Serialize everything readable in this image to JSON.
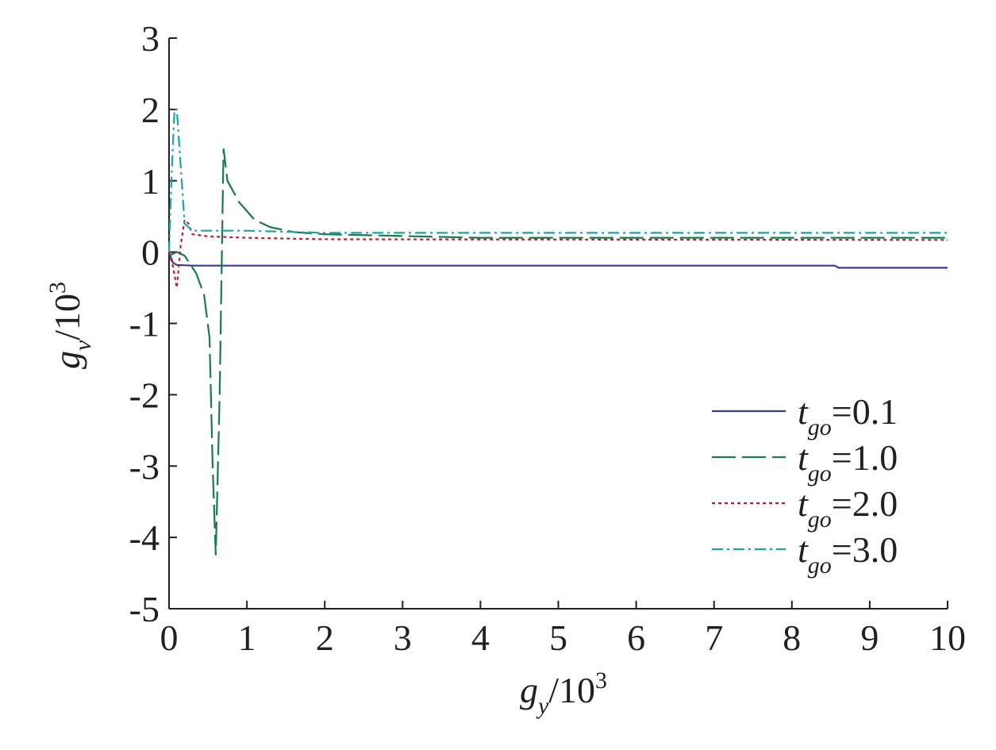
{
  "chart_data": {
    "type": "line",
    "xlabel": {
      "base": "g",
      "sub": "y",
      "text": "/10",
      "sup": "3"
    },
    "ylabel": {
      "base": "g",
      "sub": "v",
      "text": "/10",
      "sup": "3"
    },
    "xlim": [
      0,
      10
    ],
    "ylim": [
      -5,
      3
    ],
    "xticks": [
      0,
      1,
      2,
      3,
      4,
      5,
      6,
      7,
      8,
      9,
      10
    ],
    "yticks": [
      -5,
      -4,
      -3,
      -2,
      -1,
      0,
      1,
      2,
      3
    ],
    "grid": false,
    "legend": "lower right",
    "series": [
      {
        "name": {
          "base": "t",
          "sub": "go",
          "text": "=0.1"
        },
        "color": "#3b3b8f",
        "dash": "solid",
        "x": [
          0,
          0.05,
          0.1,
          0.3,
          1,
          5,
          8.55,
          8.6,
          10
        ],
        "values": [
          0,
          -0.15,
          -0.18,
          -0.19,
          -0.19,
          -0.19,
          -0.19,
          -0.22,
          -0.22
        ]
      },
      {
        "name": {
          "base": "t",
          "sub": "go",
          "text": "=1.0"
        },
        "color": "#1a7a4a",
        "dash": "dashed",
        "x": [
          0,
          0.1,
          0.2,
          0.35,
          0.45,
          0.52,
          0.56,
          0.6,
          0.65,
          0.7,
          0.75,
          0.9,
          1.1,
          1.3,
          1.6,
          2,
          4,
          10
        ],
        "values": [
          -0.05,
          0,
          -0.05,
          -0.3,
          -0.6,
          -1.2,
          -3,
          -4.25,
          -2,
          1.45,
          1.0,
          0.7,
          0.45,
          0.35,
          0.28,
          0.25,
          0.2,
          0.2
        ]
      },
      {
        "name": {
          "base": "t",
          "sub": "go",
          "text": "=2.0"
        },
        "color": "#b0203a",
        "dash": "dotted",
        "x": [
          0,
          0.05,
          0.1,
          0.15,
          0.2,
          0.25,
          0.3,
          0.5,
          1,
          2,
          10
        ],
        "values": [
          0,
          -0.2,
          -0.5,
          0.1,
          0.45,
          0.4,
          0.25,
          0.22,
          0.2,
          0.18,
          0.17
        ]
      },
      {
        "name": {
          "base": "t",
          "sub": "go",
          "text": "=3.0"
        },
        "color": "#20a0a8",
        "dash": "dashdot",
        "x": [
          0,
          0.03,
          0.07,
          0.1,
          0.15,
          0.2,
          0.3,
          1,
          2,
          10
        ],
        "values": [
          0,
          1.0,
          2.0,
          2.0,
          1.2,
          0.4,
          0.3,
          0.3,
          0.27,
          0.27
        ]
      }
    ]
  }
}
